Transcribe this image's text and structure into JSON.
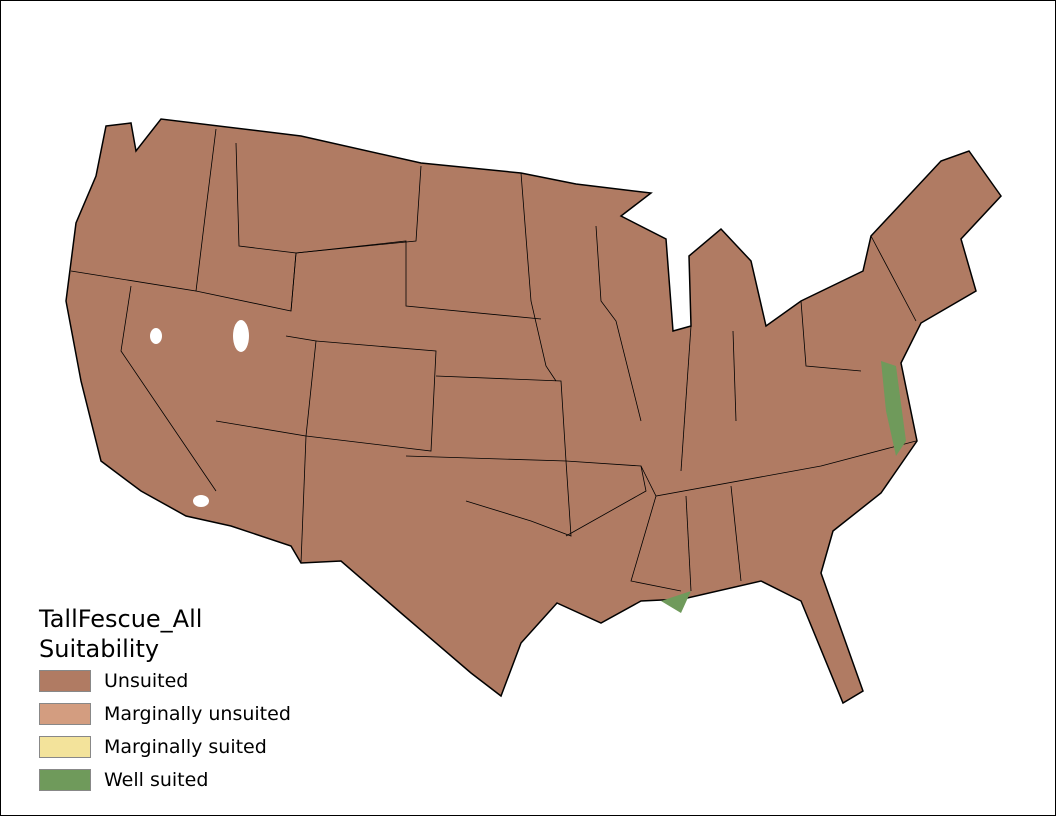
{
  "legend": {
    "title": "TallFescue_All",
    "subtitle": "Suitability",
    "items": [
      {
        "label": "Unsuited",
        "color": "#b07b63"
      },
      {
        "label": "Marginally unsuited",
        "color": "#d39d80"
      },
      {
        "label": "Marginally suited",
        "color": "#f3e39b"
      },
      {
        "label": "Well suited",
        "color": "#6f9a5b"
      }
    ]
  },
  "map": {
    "region": "Contiguous United States",
    "dominant_class": "Unsuited"
  }
}
